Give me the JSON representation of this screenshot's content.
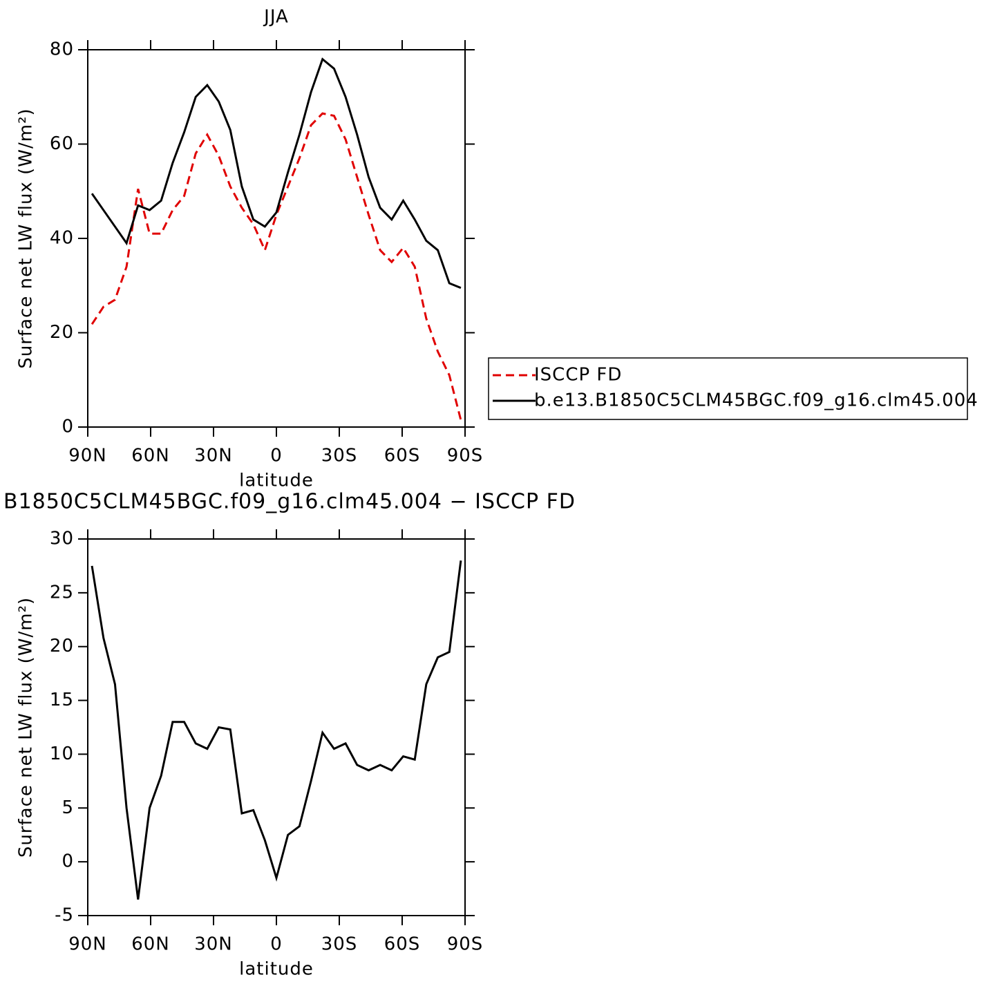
{
  "chart_data": [
    {
      "type": "line",
      "title": "JJA",
      "xlabel": "latitude",
      "ylabel": "Surface net LW flux (W/m²)",
      "x": [
        88,
        82.5,
        77,
        71.5,
        66,
        60.5,
        55,
        49.5,
        44,
        38.5,
        33,
        27.5,
        22,
        16.5,
        11,
        5.5,
        0,
        -5.5,
        -11,
        -16.5,
        -22,
        -27.5,
        -33,
        -38.5,
        -44,
        -49.5,
        -55,
        -60.5,
        -66,
        -71.5,
        -77,
        -82.5,
        -88
      ],
      "xlim": [
        90,
        -90
      ],
      "xticks": [
        {
          "value": 90,
          "label": "90N"
        },
        {
          "value": 60,
          "label": "60N"
        },
        {
          "value": 30,
          "label": "30N"
        },
        0,
        {
          "value": -30,
          "label": "30S"
        },
        {
          "value": -60,
          "label": "60S"
        },
        {
          "value": -90,
          "label": "90S"
        }
      ],
      "ylim": [
        0,
        80
      ],
      "yticks": [
        0,
        20,
        40,
        60,
        80
      ],
      "legend": "right",
      "series": [
        {
          "name": "ISCCP FD",
          "color": "#e00000",
          "dashed": true,
          "values": [
            21.8,
            25.5,
            27,
            34,
            50.5,
            41,
            41,
            46,
            49,
            58,
            62,
            57.5,
            51,
            46.5,
            43,
            37.5,
            45,
            51,
            57,
            64,
            66.5,
            66,
            61,
            53,
            45,
            37.5,
            35,
            38,
            34,
            23,
            16,
            11,
            1.5
          ]
        },
        {
          "name": "b.e13.B1850C5CLM45BGC.f09_g16.clm45.004",
          "color": "#000000",
          "dashed": false,
          "values": [
            49.5,
            46,
            42.5,
            39,
            47,
            46,
            48,
            56,
            62.5,
            70,
            72.5,
            69,
            63,
            51,
            44,
            42.5,
            45.5,
            54,
            62,
            71,
            78,
            76,
            70,
            62,
            53,
            46.5,
            44,
            48,
            44,
            39.5,
            37.5,
            30.5,
            29.5
          ]
        }
      ]
    },
    {
      "type": "line",
      "title": "B1850C5CLM45BGC.f09_g16.clm45.004 − ISCCP FD",
      "xlabel": "latitude",
      "ylabel": "Surface net LW flux (W/m²)",
      "x": [
        88,
        82.5,
        77,
        71.5,
        66,
        60.5,
        55,
        49.5,
        44,
        38.5,
        33,
        27.5,
        22,
        16.5,
        11,
        5.5,
        0,
        -5.5,
        -11,
        -16.5,
        -22,
        -27.5,
        -33,
        -38.5,
        -44,
        -49.5,
        -55,
        -60.5,
        -66,
        -71.5,
        -77,
        -82.5,
        -88
      ],
      "xlim": [
        90,
        -90
      ],
      "xticks": [
        {
          "value": 90,
          "label": "90N"
        },
        {
          "value": 60,
          "label": "60N"
        },
        {
          "value": 30,
          "label": "30N"
        },
        0,
        {
          "value": -30,
          "label": "30S"
        },
        {
          "value": -60,
          "label": "60S"
        },
        {
          "value": -90,
          "label": "90S"
        }
      ],
      "ylim": [
        -5,
        30
      ],
      "yticks": [
        -5,
        0,
        5,
        10,
        15,
        20,
        25,
        30
      ],
      "series": [
        {
          "color": "#000000",
          "dashed": false,
          "values": [
            27.5,
            20.8,
            16.5,
            5,
            -3.5,
            5,
            8,
            13,
            13,
            11,
            10.5,
            12.5,
            12.3,
            4.5,
            4.8,
            2,
            -1.5,
            2.5,
            3.3,
            7.5,
            12,
            10.5,
            11,
            9,
            8.5,
            9,
            8.5,
            9.8,
            9.5,
            16.5,
            19,
            19.5,
            28
          ]
        }
      ]
    }
  ]
}
